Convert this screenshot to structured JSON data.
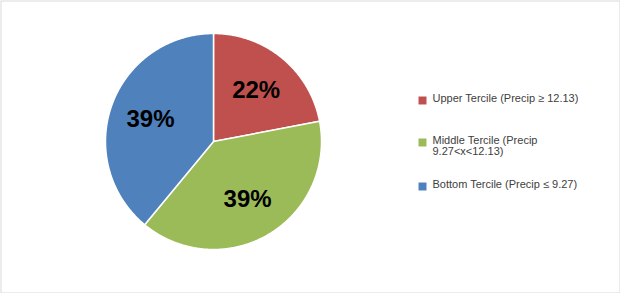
{
  "chart_data": {
    "type": "pie",
    "categories": [
      "Upper Tercile (Precip ≥ 12.13)",
      "Middle Tercile (Precip 9.27<x<12.13)",
      "Bottom Tercile (Precip ≤ 9.27)"
    ],
    "values": [
      22,
      39,
      39
    ],
    "value_labels": [
      "22%",
      "39%",
      "39%"
    ],
    "colors": [
      "#c0504d",
      "#9bbb59",
      "#4f81bd"
    ],
    "data_labels": true,
    "legend": "right"
  }
}
